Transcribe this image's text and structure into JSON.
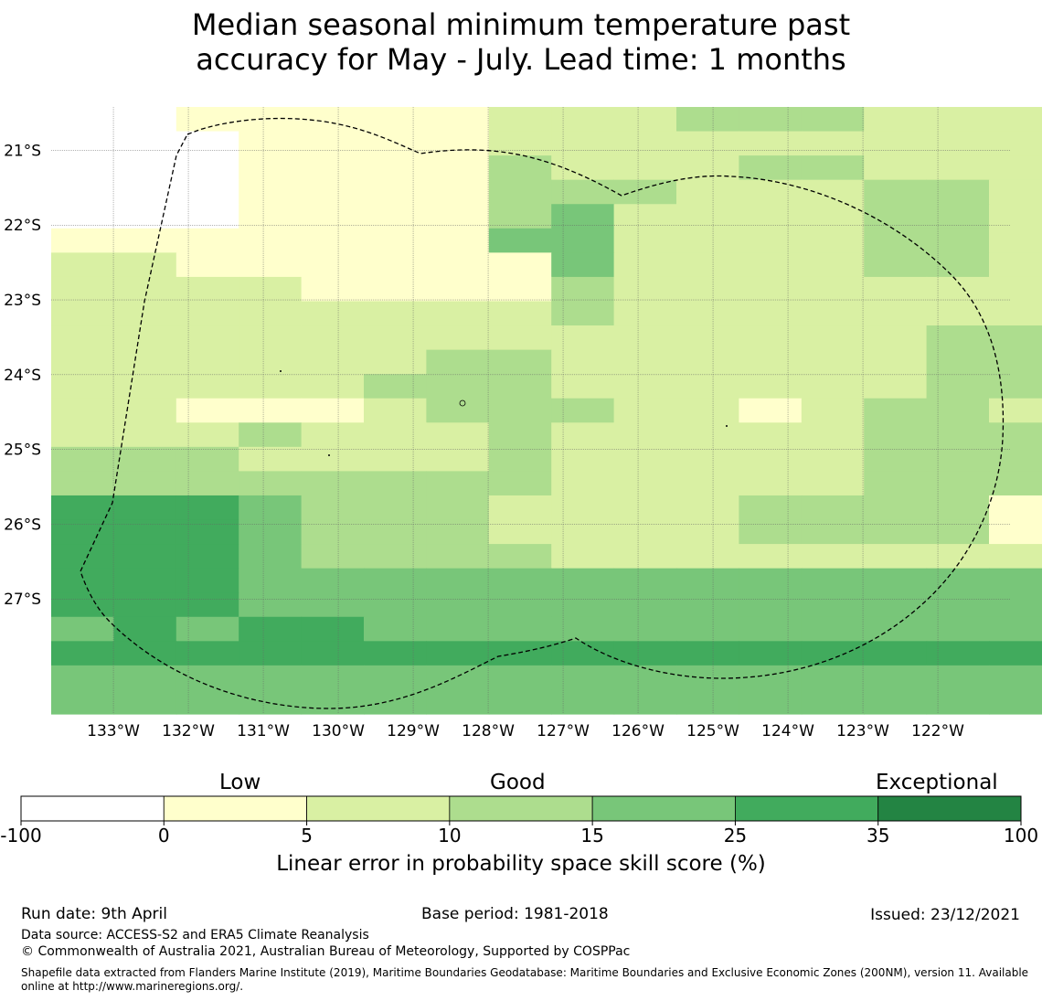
{
  "title": {
    "line1": "Median seasonal minimum temperature past",
    "line2": "accuracy for May - July. Lead time: 1 months"
  },
  "map": {
    "lat_labels": [
      "21°S",
      "22°S",
      "23°S",
      "24°S",
      "25°S",
      "26°S",
      "27°S"
    ],
    "lat_values": [
      -21,
      -22,
      -23,
      -24,
      -25,
      -26,
      -27
    ],
    "lon_labels": [
      "133°W",
      "132°W",
      "131°W",
      "130°W",
      "129°W",
      "128°W",
      "127°W",
      "126°W",
      "125°W",
      "124°W",
      "123°W",
      "122°W"
    ],
    "lon_values": [
      -133,
      -132,
      -131,
      -130,
      -129,
      -128,
      -127,
      -126,
      -125,
      -124,
      -123,
      -122
    ],
    "grid_rows_north_to_south": [
      "0011111222333222",
      "0001111222222222",
      "0001111322233222",
      "0001111333222332",
      "0001111342222332",
      "1111111442222332",
      "2211111142222332",
      "2222111132222222",
      "2222222232222222",
      "2222222222222233",
      "2222223322222233",
      "2222233322222233",
      "2211123332212332",
      "2223222322222333",
      "3332222322222333",
      "3333333322222333",
      "5554333222233331",
      "5554333222233331",
      "5554333322222222",
      "5554444444444444",
      "5554444444444444",
      "4545544444444444",
      "5555555555555555",
      "4444444444444444",
      "4444444444444444"
    ]
  },
  "colorbar": {
    "categories": [
      {
        "value": 0,
        "color": "#ffffff"
      },
      {
        "value": 1,
        "color": "#ffffcc"
      },
      {
        "value": 2,
        "color": "#d9f0a3"
      },
      {
        "value": 3,
        "color": "#addd8e"
      },
      {
        "value": 4,
        "color": "#78c679"
      },
      {
        "value": 5,
        "color": "#41ab5d"
      },
      {
        "value": 6,
        "color": "#238443"
      }
    ],
    "ticks": [
      "-100",
      "0",
      "5",
      "10",
      "15",
      "25",
      "35",
      "100"
    ],
    "low_label": "Low",
    "good_label": "Good",
    "exceptional_label": "Exceptional",
    "axis_label": "Linear error in probability space skill score (%)"
  },
  "footer": {
    "run_date": "Run date: 9th April",
    "base_period": "Base period: 1981-2018",
    "issued": "Issued: 23/12/2021",
    "data_source": "Data source: ACCESS-S2 and ERA5 Climate Reanalysis",
    "copyright": "© Commonwealth of Australia 2021, Australian Bureau of Meteorology, Supported by COSPPac",
    "shapefile_note": "Shapefile data extracted from Flanders Marine Institute (2019), Maritime Boundaries Geodatabase: Maritime Boundaries and Exclusive Economic Zones (200NM), version 11. Available online at http://www.marineregions.org/."
  }
}
